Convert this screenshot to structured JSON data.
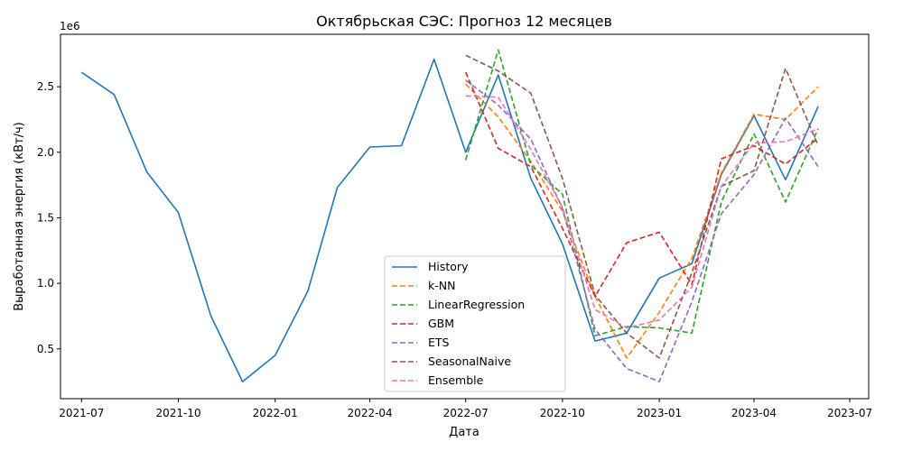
{
  "chart_data": {
    "type": "line",
    "title": "Октябрьская СЭС: Прогноз 12 месяцев",
    "xlabel": "Дата",
    "ylabel": "Выработанная энергия (кВт/ч)",
    "y_offset_label": "1e6",
    "y_multiplier": 1000000,
    "ylim": [
      0.12,
      2.9
    ],
    "xlim": [
      "2021-06-11",
      "2023-07-19"
    ],
    "x_ticks": [
      {
        "date": "2021-07-01",
        "label": "2021-07"
      },
      {
        "date": "2021-10-01",
        "label": "2021-10"
      },
      {
        "date": "2022-01-01",
        "label": "2022-01"
      },
      {
        "date": "2022-04-01",
        "label": "2022-04"
      },
      {
        "date": "2022-07-01",
        "label": "2022-07"
      },
      {
        "date": "2022-10-01",
        "label": "2022-10"
      },
      {
        "date": "2023-01-01",
        "label": "2023-01"
      },
      {
        "date": "2023-04-01",
        "label": "2023-04"
      },
      {
        "date": "2023-07-01",
        "label": "2023-07"
      }
    ],
    "y_ticks": [
      {
        "value": 0.5,
        "label": "0.5"
      },
      {
        "value": 1.0,
        "label": "1.0"
      },
      {
        "value": 1.5,
        "label": "1.5"
      },
      {
        "value": 2.0,
        "label": "2.0"
      },
      {
        "value": 2.5,
        "label": "2.5"
      }
    ],
    "legend_position": "lower-center",
    "series": [
      {
        "name": "History",
        "color": "#1f77b4",
        "style": "solid",
        "x": [
          "2021-07-01",
          "2021-08-01",
          "2021-09-01",
          "2021-10-01",
          "2021-11-01",
          "2021-12-01",
          "2022-01-01",
          "2022-02-01",
          "2022-03-01",
          "2022-04-01",
          "2022-05-01",
          "2022-06-01",
          "2022-07-01",
          "2022-08-01",
          "2022-09-01",
          "2022-10-01",
          "2022-11-01",
          "2022-12-01",
          "2023-01-01",
          "2023-02-01",
          "2023-03-01",
          "2023-04-01",
          "2023-05-01",
          "2023-06-01"
        ],
        "y": [
          2.61,
          2.44,
          1.85,
          1.54,
          0.75,
          0.25,
          0.45,
          0.94,
          1.73,
          2.04,
          2.05,
          2.71,
          2.0,
          2.59,
          1.8,
          1.3,
          0.56,
          0.62,
          1.04,
          1.15,
          1.83,
          2.28,
          1.79,
          2.35
        ]
      },
      {
        "name": "k-NN",
        "color": "#ff7f0e",
        "style": "dashed",
        "x": [
          "2022-07-01",
          "2022-08-01",
          "2022-09-01",
          "2022-10-01",
          "2022-11-01",
          "2022-12-01",
          "2023-01-01",
          "2023-02-01",
          "2023-03-01",
          "2023-04-01",
          "2023-05-01",
          "2023-06-01"
        ],
        "y": [
          2.52,
          2.27,
          1.93,
          1.55,
          0.9,
          0.43,
          0.78,
          1.19,
          1.84,
          2.29,
          2.25,
          2.5
        ]
      },
      {
        "name": "LinearRegression",
        "color": "#2ca02c",
        "style": "dashed",
        "x": [
          "2022-07-01",
          "2022-08-01",
          "2022-09-01",
          "2022-10-01",
          "2022-11-01",
          "2022-12-01",
          "2023-01-01",
          "2023-02-01",
          "2023-03-01",
          "2023-04-01",
          "2023-05-01",
          "2023-06-01"
        ],
        "y": [
          1.94,
          2.78,
          1.9,
          1.68,
          0.6,
          0.67,
          0.66,
          0.62,
          1.62,
          2.14,
          1.62,
          2.18
        ]
      },
      {
        "name": "GBM",
        "color": "#d62728",
        "style": "dashed",
        "x": [
          "2022-07-01",
          "2022-08-01",
          "2022-09-01",
          "2022-10-01",
          "2022-11-01",
          "2022-12-01",
          "2023-01-01",
          "2023-02-01",
          "2023-03-01",
          "2023-04-01",
          "2023-05-01",
          "2023-06-01"
        ],
        "y": [
          2.61,
          2.03,
          1.89,
          1.42,
          0.9,
          1.31,
          1.39,
          0.99,
          1.95,
          2.05,
          1.91,
          2.11
        ]
      },
      {
        "name": "ETS",
        "color": "#9467bd",
        "style": "dashed",
        "x": [
          "2022-07-01",
          "2022-08-01",
          "2022-09-01",
          "2022-10-01",
          "2022-11-01",
          "2022-12-01",
          "2023-01-01",
          "2023-02-01",
          "2023-03-01",
          "2023-04-01",
          "2023-05-01",
          "2023-06-01"
        ],
        "y": [
          2.55,
          2.36,
          2.1,
          1.57,
          0.65,
          0.35,
          0.25,
          0.86,
          1.53,
          1.83,
          2.26,
          1.89
        ]
      },
      {
        "name": "SeasonalNaive",
        "color": "#8c564b",
        "style": "dashed",
        "x": [
          "2022-07-01",
          "2022-08-01",
          "2022-09-01",
          "2022-10-01",
          "2022-11-01",
          "2022-12-01",
          "2023-01-01",
          "2023-02-01",
          "2023-03-01",
          "2023-04-01",
          "2023-05-01",
          "2023-06-01"
        ],
        "y": [
          2.74,
          2.62,
          2.45,
          1.8,
          0.91,
          0.62,
          0.43,
          1.08,
          1.74,
          1.86,
          2.64,
          2.05
        ]
      },
      {
        "name": "Ensemble",
        "color": "#e377c2",
        "style": "dashed",
        "x": [
          "2022-07-01",
          "2022-08-01",
          "2022-09-01",
          "2022-10-01",
          "2022-11-01",
          "2022-12-01",
          "2023-01-01",
          "2023-02-01",
          "2023-03-01",
          "2023-04-01",
          "2023-05-01",
          "2023-06-01"
        ],
        "y": [
          2.43,
          2.42,
          2.02,
          1.58,
          0.8,
          0.66,
          0.72,
          0.97,
          1.74,
          2.07,
          2.08,
          2.18
        ]
      }
    ]
  }
}
